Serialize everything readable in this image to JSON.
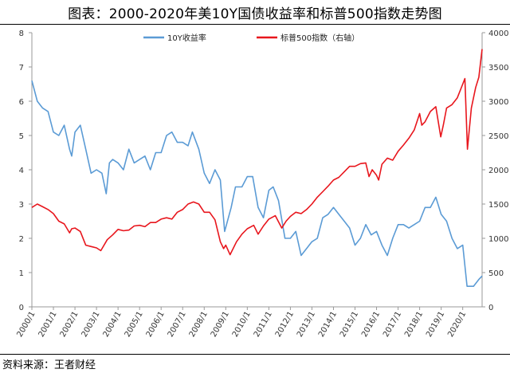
{
  "header": {
    "title": "图表：2000-2020年美10Y国债收益率和标普500指数走势图"
  },
  "footer": {
    "source": "资料来源：王者财经"
  },
  "chart_data": {
    "type": "line",
    "left_axis": {
      "min": 0,
      "max": 8,
      "ticks": [
        "0",
        "1",
        "2",
        "3",
        "4",
        "5",
        "6",
        "7",
        "8"
      ]
    },
    "right_axis": {
      "min": 0,
      "max": 4000,
      "ticks": [
        "0",
        "500",
        "1000",
        "1500",
        "2000",
        "2500",
        "3000",
        "3500",
        "4000"
      ]
    },
    "x_ticks": [
      "2000/1",
      "2001/1",
      "2002/1",
      "2003/1",
      "2004/1",
      "2005/1",
      "2006/1",
      "2007/1",
      "2008/1",
      "2009/1",
      "2010/1",
      "2011/1",
      "2012/1",
      "2013/1",
      "2014/1",
      "2015/1",
      "2016/1",
      "2017/1",
      "2018/1",
      "2019/1",
      "2020/1"
    ],
    "x_range": [
      2000.0,
      2020.9
    ],
    "grid": false,
    "legend_position": "top",
    "series": [
      {
        "name": "10Y收益率",
        "axis": "left",
        "color": "#5b9bd5",
        "x": [
          2000.0,
          2000.25,
          2000.5,
          2000.75,
          2001.0,
          2001.25,
          2001.5,
          2001.75,
          2001.85,
          2002.0,
          2002.25,
          2002.5,
          2002.75,
          2003.0,
          2003.25,
          2003.45,
          2003.6,
          2003.75,
          2004.0,
          2004.25,
          2004.5,
          2004.75,
          2005.0,
          2005.25,
          2005.5,
          2005.75,
          2006.0,
          2006.25,
          2006.5,
          2006.75,
          2007.0,
          2007.25,
          2007.45,
          2007.75,
          2008.0,
          2008.25,
          2008.5,
          2008.75,
          2008.95,
          2009.25,
          2009.45,
          2009.75,
          2010.0,
          2010.25,
          2010.5,
          2010.75,
          2011.0,
          2011.2,
          2011.45,
          2011.75,
          2012.0,
          2012.25,
          2012.5,
          2012.75,
          2013.0,
          2013.25,
          2013.5,
          2013.75,
          2014.0,
          2014.25,
          2014.5,
          2014.75,
          2015.0,
          2015.25,
          2015.5,
          2015.75,
          2016.0,
          2016.25,
          2016.5,
          2016.75,
          2017.0,
          2017.25,
          2017.5,
          2017.75,
          2018.0,
          2018.25,
          2018.5,
          2018.75,
          2019.0,
          2019.25,
          2019.5,
          2019.75,
          2020.0,
          2020.2,
          2020.5,
          2020.75,
          2020.9
        ],
        "values": [
          6.6,
          6.0,
          5.8,
          5.7,
          5.1,
          5.0,
          5.3,
          4.6,
          4.4,
          5.1,
          5.3,
          4.6,
          3.9,
          4.0,
          3.9,
          3.3,
          4.2,
          4.3,
          4.2,
          4.0,
          4.6,
          4.2,
          4.3,
          4.4,
          4.0,
          4.5,
          4.5,
          5.0,
          5.1,
          4.8,
          4.8,
          4.7,
          5.1,
          4.6,
          3.9,
          3.6,
          4.0,
          3.7,
          2.2,
          2.9,
          3.5,
          3.5,
          3.8,
          3.8,
          2.9,
          2.6,
          3.4,
          3.5,
          3.1,
          2.0,
          2.0,
          2.2,
          1.5,
          1.7,
          1.9,
          2.0,
          2.6,
          2.7,
          2.9,
          2.7,
          2.5,
          2.3,
          1.8,
          2.0,
          2.4,
          2.1,
          2.2,
          1.8,
          1.5,
          2.0,
          2.4,
          2.4,
          2.3,
          2.4,
          2.5,
          2.9,
          2.9,
          3.2,
          2.7,
          2.5,
          2.0,
          1.7,
          1.8,
          0.6,
          0.6,
          0.8,
          0.9
        ]
      },
      {
        "name": "标普500指数（右轴）",
        "axis": "right",
        "color": "#e8161d",
        "x": [
          2000.0,
          2000.25,
          2000.5,
          2000.75,
          2001.0,
          2001.25,
          2001.5,
          2001.75,
          2001.85,
          2002.0,
          2002.25,
          2002.5,
          2002.75,
          2003.0,
          2003.2,
          2003.5,
          2003.75,
          2004.0,
          2004.25,
          2004.5,
          2004.75,
          2005.0,
          2005.25,
          2005.5,
          2005.75,
          2006.0,
          2006.25,
          2006.5,
          2006.75,
          2007.0,
          2007.25,
          2007.5,
          2007.75,
          2008.0,
          2008.25,
          2008.5,
          2008.75,
          2008.9,
          2009.0,
          2009.2,
          2009.5,
          2009.75,
          2010.0,
          2010.3,
          2010.5,
          2010.75,
          2011.0,
          2011.3,
          2011.6,
          2011.8,
          2012.0,
          2012.25,
          2012.5,
          2012.75,
          2013.0,
          2013.25,
          2013.5,
          2013.75,
          2014.0,
          2014.25,
          2014.5,
          2014.75,
          2015.0,
          2015.25,
          2015.5,
          2015.65,
          2015.8,
          2016.0,
          2016.1,
          2016.25,
          2016.5,
          2016.75,
          2017.0,
          2017.25,
          2017.5,
          2017.75,
          2018.0,
          2018.1,
          2018.25,
          2018.5,
          2018.75,
          2018.98,
          2019.1,
          2019.25,
          2019.5,
          2019.75,
          2020.0,
          2020.1,
          2020.22,
          2020.4,
          2020.6,
          2020.75,
          2020.9
        ],
        "values": [
          1450,
          1500,
          1460,
          1420,
          1360,
          1250,
          1210,
          1080,
          1140,
          1150,
          1100,
          900,
          880,
          860,
          820,
          980,
          1050,
          1130,
          1110,
          1120,
          1180,
          1190,
          1170,
          1230,
          1230,
          1280,
          1300,
          1280,
          1380,
          1420,
          1500,
          1530,
          1500,
          1380,
          1380,
          1270,
          950,
          850,
          900,
          760,
          950,
          1060,
          1140,
          1190,
          1060,
          1180,
          1280,
          1330,
          1150,
          1250,
          1320,
          1380,
          1360,
          1420,
          1500,
          1600,
          1680,
          1760,
          1850,
          1890,
          1970,
          2050,
          2050,
          2090,
          2100,
          1900,
          2000,
          1920,
          1850,
          2080,
          2170,
          2140,
          2270,
          2360,
          2460,
          2580,
          2820,
          2650,
          2700,
          2850,
          2920,
          2480,
          2650,
          2900,
          2950,
          3050,
          3250,
          3330,
          2300,
          2900,
          3200,
          3350,
          3760
        ]
      }
    ]
  }
}
